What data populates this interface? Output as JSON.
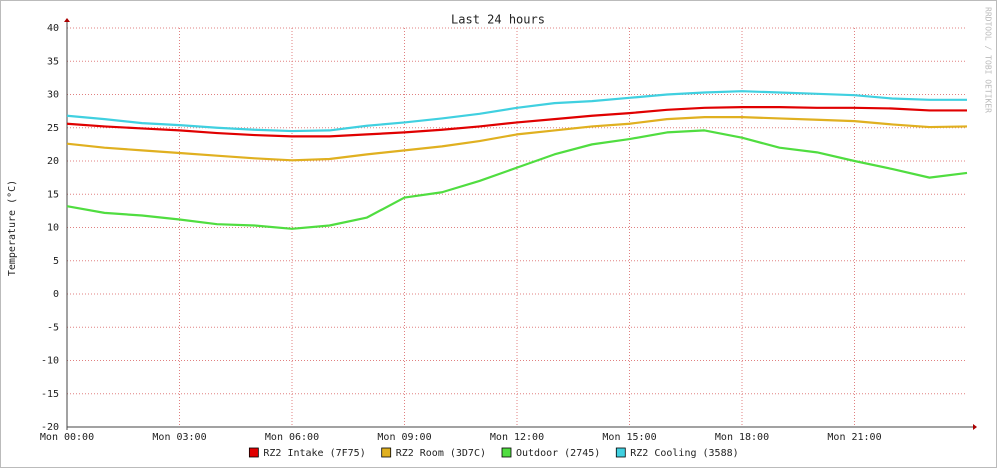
{
  "chart_data": {
    "type": "line",
    "title": "Last 24 hours",
    "y_label": "Temperature (°C)",
    "watermark": "RRDTOOL / TOBI OETIKER",
    "x": [
      0,
      1,
      2,
      3,
      4,
      5,
      6,
      7,
      8,
      9,
      10,
      11,
      12,
      13,
      14,
      15,
      16,
      17,
      18,
      19,
      20,
      21,
      22,
      23,
      24
    ],
    "xlim": [
      0,
      24
    ],
    "xticks": [
      {
        "value": 0,
        "label": "Mon 00:00"
      },
      {
        "value": 3,
        "label": "Mon 03:00"
      },
      {
        "value": 6,
        "label": "Mon 06:00"
      },
      {
        "value": 9,
        "label": "Mon 09:00"
      },
      {
        "value": 12,
        "label": "Mon 12:00"
      },
      {
        "value": 15,
        "label": "Mon 15:00"
      },
      {
        "value": 18,
        "label": "Mon 18:00"
      },
      {
        "value": 21,
        "label": "Mon 21:00"
      }
    ],
    "ylim": [
      -20,
      40
    ],
    "yticks": [
      -20,
      -15,
      -10,
      -5,
      0,
      5,
      10,
      15,
      20,
      25,
      30,
      35,
      40
    ],
    "grid": true,
    "series": [
      {
        "name": "RZ2 Intake (7F75)",
        "color": "#e00000",
        "values": [
          25.6,
          25.2,
          24.9,
          24.6,
          24.2,
          23.9,
          23.7,
          23.7,
          24.0,
          24.3,
          24.7,
          25.2,
          25.8,
          26.3,
          26.8,
          27.2,
          27.7,
          28.0,
          28.1,
          28.1,
          28.0,
          28.0,
          27.9,
          27.6,
          27.6
        ]
      },
      {
        "name": "RZ2 Room (3D7C)",
        "color": "#e0b020",
        "values": [
          22.6,
          22.0,
          21.6,
          21.2,
          20.8,
          20.4,
          20.1,
          20.3,
          21.0,
          21.6,
          22.2,
          23.0,
          24.0,
          24.6,
          25.2,
          25.6,
          26.3,
          26.6,
          26.6,
          26.4,
          26.2,
          26.0,
          25.5,
          25.1,
          25.2
        ]
      },
      {
        "name": "Outdoor (2745)",
        "color": "#50dd40",
        "values": [
          13.2,
          12.2,
          11.8,
          11.2,
          10.5,
          10.3,
          9.8,
          10.3,
          11.5,
          14.5,
          15.3,
          17.0,
          19.0,
          21.0,
          22.5,
          23.3,
          24.3,
          24.6,
          23.5,
          22.0,
          21.3,
          20.0,
          18.8,
          17.5,
          18.2
        ]
      },
      {
        "name": "RZ2 Cooling (3588)",
        "color": "#40d0e0",
        "values": [
          26.8,
          26.3,
          25.7,
          25.4,
          25.0,
          24.7,
          24.5,
          24.6,
          25.3,
          25.8,
          26.4,
          27.1,
          28.0,
          28.7,
          29.0,
          29.5,
          30.0,
          30.3,
          30.5,
          30.3,
          30.1,
          29.9,
          29.4,
          29.2,
          29.2
        ]
      }
    ]
  }
}
